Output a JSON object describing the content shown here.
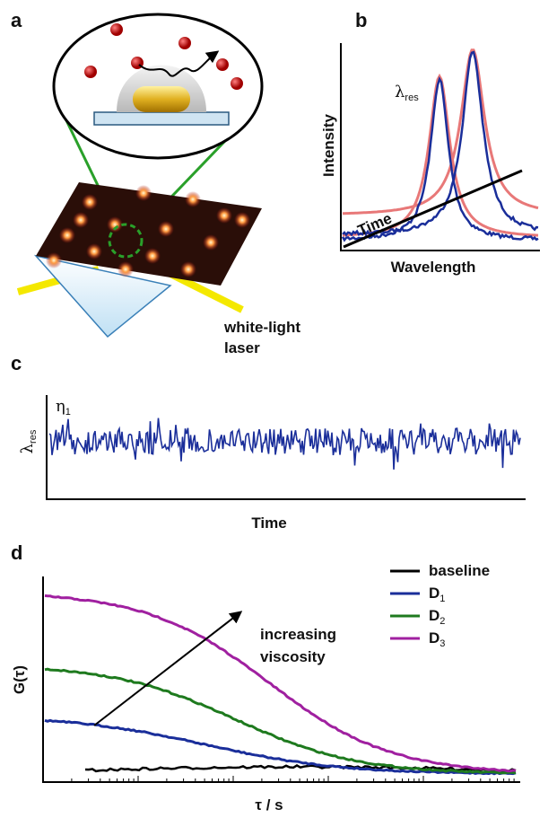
{
  "panels": {
    "a": {
      "label": "a",
      "laser_label": [
        "white-light",
        "laser"
      ]
    },
    "b": {
      "label": "b",
      "resonance": {
        "symbol": "λ",
        "subscript": "res"
      },
      "y_axis": "Intensity",
      "x_axis": "Wavelength",
      "time_axis": "Time"
    },
    "c": {
      "label": "c",
      "trace_label": {
        "symbol": "η",
        "subscript": "1"
      },
      "y_axis": {
        "symbol": "λ",
        "subscript": "res"
      },
      "x_axis": "Time"
    },
    "d": {
      "label": "d",
      "legend": [
        {
          "name": "baseline"
        },
        {
          "symbol": "D",
          "subscript": "1"
        },
        {
          "symbol": "D",
          "subscript": "2"
        },
        {
          "symbol": "D",
          "subscript": "3"
        }
      ],
      "annotation": [
        "increasing",
        "viscosity"
      ],
      "y_axis": "G(τ)",
      "x_axis": "τ / s"
    }
  }
}
